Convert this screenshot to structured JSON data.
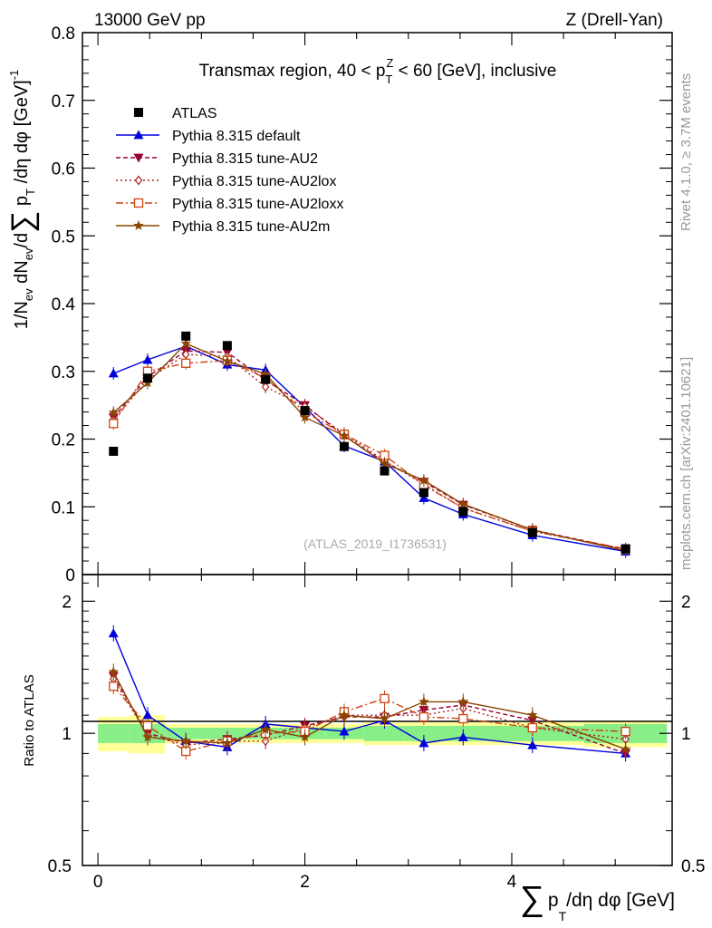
{
  "header": {
    "left": "13000 GeV pp",
    "right": "Z (Drell-Yan)"
  },
  "side": {
    "rivet": "Rivet 4.1.0, ≥ 3.7M events",
    "mcplots": "mcplots.cern.ch [arXiv:2401.10621]"
  },
  "chart_data": {
    "type": "line",
    "title": "Transmax region, 40 < p_T^Z < 60 [GeV], inclusive",
    "title_parts": {
      "pre": "Transmax region, 40 < p",
      "sup": "Z",
      "sub": "T",
      "post": " < 60 [GeV], inclusive"
    },
    "watermark": "(ATLAS_2019_I1736531)",
    "xlabel": "∑ p_T/dη dφ [GeV]",
    "xlabel_parts": {
      "sum": "∑",
      "p": "p",
      "sub": "T",
      "rest": "/dη dφ [GeV]"
    },
    "ylabel": "1/N_ev dN_ev/d∑ p_T/dη dφ [GeV]^-1",
    "ylabel_parts": {
      "a": "1/N",
      "sub1": "ev",
      "b": " dN",
      "sub2": "ev",
      "c": "/d",
      "sum": "∑",
      "d": " p",
      "sub3": "T",
      "e": " /dη dφ  [GeV]",
      "sup": "-1"
    },
    "xlim": [
      -0.15,
      5.55
    ],
    "ylim": [
      0,
      0.8
    ],
    "x_ticks": [
      0,
      2,
      4
    ],
    "x_tick_labels": [
      "0",
      "2",
      "4"
    ],
    "y_ticks": [
      0,
      0.1,
      0.2,
      0.3,
      0.4,
      0.5,
      0.6,
      0.7,
      0.8
    ],
    "y_tick_labels": [
      "0",
      "0.1",
      "0.2",
      "0.3",
      "0.4",
      "0.5",
      "0.6",
      "0.7",
      "0.8"
    ],
    "x": [
      0.15,
      0.48,
      0.85,
      1.25,
      1.62,
      2.0,
      2.38,
      2.77,
      3.15,
      3.53,
      4.2,
      5.1
    ],
    "bin_edges": [
      0.0,
      0.3,
      0.65,
      1.05,
      1.45,
      1.8,
      2.2,
      2.57,
      2.96,
      3.34,
      3.72,
      4.7,
      5.5
    ],
    "data": {
      "name": "ATLAS",
      "values": [
        0.182,
        0.29,
        0.352,
        0.338,
        0.288,
        0.242,
        0.189,
        0.153,
        0.121,
        0.093,
        0.062,
        0.038
      ]
    },
    "series": [
      {
        "name": "Pythia 8.315 default",
        "color": "#0000dd",
        "marker": "triangle-up",
        "dash": "",
        "values": [
          0.297,
          0.317,
          0.337,
          0.31,
          0.302,
          0.247,
          0.19,
          0.167,
          0.113,
          0.089,
          0.058,
          0.034
        ],
        "ratio": [
          1.69,
          1.1,
          0.96,
          0.93,
          1.05,
          1.03,
          1.01,
          1.07,
          0.95,
          0.98,
          0.94,
          0.9
        ]
      },
      {
        "name": "Pythia 8.315 tune-AU2",
        "color": "#990033",
        "marker": "triangle-down",
        "dash": "5,3",
        "values": [
          0.232,
          0.292,
          0.33,
          0.328,
          0.287,
          0.25,
          0.205,
          0.166,
          0.137,
          0.103,
          0.066,
          0.037
        ],
        "ratio": [
          1.35,
          1.0,
          0.95,
          0.97,
          0.99,
          1.04,
          1.09,
          1.09,
          1.13,
          1.16,
          1.07,
          0.9
        ]
      },
      {
        "name": "Pythia 8.315 tune-AU2lox",
        "color": "#aa2222",
        "marker": "diamond",
        "dash": "2,3",
        "values": [
          0.228,
          0.288,
          0.325,
          0.322,
          0.277,
          0.248,
          0.208,
          0.168,
          0.133,
          0.098,
          0.064,
          0.037
        ],
        "ratio": [
          1.33,
          0.99,
          0.94,
          0.96,
          0.96,
          1.03,
          1.1,
          1.1,
          1.1,
          1.14,
          1.03,
          0.97
        ]
      },
      {
        "name": "Pythia 8.315 tune-AU2loxx",
        "color": "#cc4411",
        "marker": "square-open",
        "dash": "8,3,2,3",
        "values": [
          0.223,
          0.3,
          0.312,
          0.316,
          0.29,
          0.24,
          0.207,
          0.176,
          0.132,
          0.098,
          0.064,
          0.038
        ],
        "ratio": [
          1.28,
          1.04,
          0.91,
          0.96,
          1.0,
          1.01,
          1.12,
          1.2,
          1.09,
          1.08,
          1.03,
          1.01
        ]
      },
      {
        "name": "Pythia 8.315 tune-AU2m",
        "color": "#8b4500",
        "marker": "star",
        "dash": "",
        "values": [
          0.239,
          0.283,
          0.341,
          0.315,
          0.296,
          0.232,
          0.205,
          0.164,
          0.139,
          0.104,
          0.066,
          0.035
        ],
        "ratio": [
          1.38,
          0.98,
          0.96,
          0.95,
          1.02,
          0.98,
          1.1,
          1.08,
          1.18,
          1.18,
          1.1,
          0.92
        ]
      }
    ],
    "ratio_panel": {
      "ylabel": "Ratio to ATLAS",
      "ylim": [
        0.5,
        2.3
      ],
      "log": true,
      "y_ticks": [
        0.5,
        1,
        2
      ],
      "y_tick_labels": [
        "0.5",
        "1",
        "2"
      ],
      "band_stat": [
        0.05,
        0.05,
        0.03,
        0.03,
        0.03,
        0.03,
        0.03,
        0.04,
        0.04,
        0.04,
        0.04,
        0.05
      ],
      "band_total": [
        0.09,
        0.1,
        0.05,
        0.05,
        0.05,
        0.05,
        0.05,
        0.06,
        0.06,
        0.06,
        0.06,
        0.07
      ]
    },
    "legend_position": "top-left"
  }
}
